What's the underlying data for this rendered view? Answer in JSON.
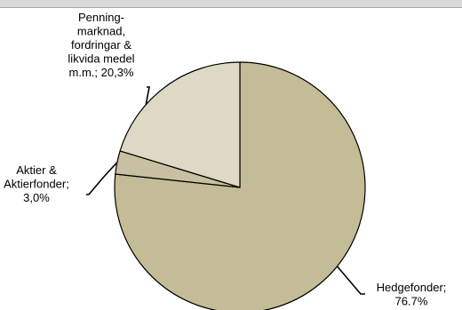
{
  "chart_data": {
    "type": "pie",
    "title": "",
    "slices": [
      {
        "name": "Hedgefonder",
        "value": 76.7,
        "label_lines": [
          "Hedgefonder;",
          "76.7%"
        ],
        "color": "#c4bc96"
      },
      {
        "name": "Aktier & Aktierfonder",
        "value": 3.0,
        "label_lines": [
          "Aktier &",
          "Aktierfonder;",
          "3,0%"
        ],
        "color": "#c8c0a0"
      },
      {
        "name": "Penningmarknad, fordringar & likvida medel m.m.",
        "value": 20.3,
        "label_lines": [
          "Penning-",
          "marknad,",
          "fordringar &",
          "likvida medel",
          "m.m.; 20,3%"
        ],
        "color": "#ddd9c4"
      }
    ],
    "start_angle_deg": 0,
    "direction": "clockwise",
    "legend": "none",
    "slice_border_color": "#000000"
  }
}
